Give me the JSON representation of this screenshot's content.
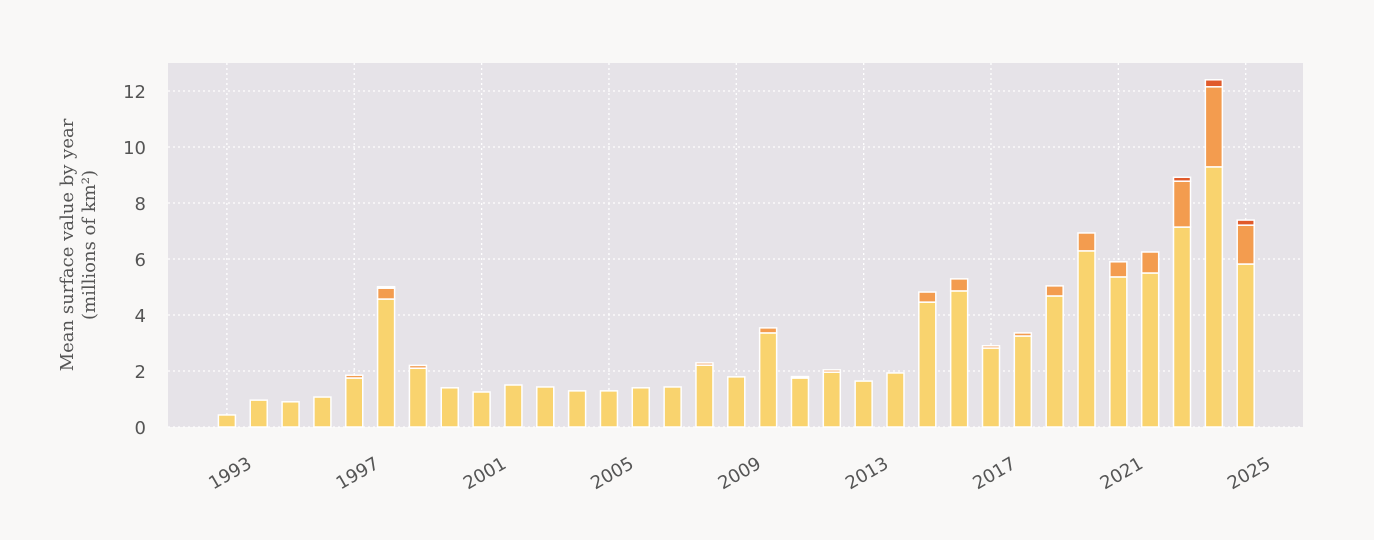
{
  "chart_data": {
    "type": "stacked-bar",
    "ylabel": [
      "Mean surface value by year",
      "(millions of km²)"
    ],
    "x": [
      1993,
      1994,
      1995,
      1996,
      1997,
      1998,
      1999,
      2000,
      2001,
      2002,
      2003,
      2004,
      2005,
      2006,
      2007,
      2008,
      2009,
      2010,
      2011,
      2012,
      2013,
      2014,
      2015,
      2016,
      2017,
      2018,
      2019,
      2020,
      2021,
      2022,
      2023,
      2024,
      2025
    ],
    "series": [
      {
        "color": "#f9d36e",
        "values": [
          0.43,
          0.96,
          0.9,
          1.07,
          1.75,
          4.57,
          2.1,
          1.4,
          1.25,
          1.5,
          1.43,
          1.29,
          1.29,
          1.4,
          1.43,
          2.21,
          1.79,
          3.36,
          1.75,
          1.96,
          1.64,
          1.93,
          4.46,
          4.86,
          2.82,
          3.25,
          4.68,
          6.29,
          5.36,
          5.5,
          7.14,
          9.29,
          5.82
        ]
      },
      {
        "color": "#f39c4f",
        "values": [
          0,
          0,
          0,
          0,
          0.1,
          0.39,
          0.1,
          0,
          0,
          0,
          0,
          0,
          0,
          0,
          0,
          0.08,
          0,
          0.18,
          0.05,
          0.08,
          0,
          0,
          0.36,
          0.43,
          0.08,
          0.11,
          0.36,
          0.64,
          0.54,
          0.75,
          1.64,
          2.86,
          1.39
        ]
      },
      {
        "color": "#e05a2b",
        "values": [
          0,
          0,
          0,
          0,
          0,
          0.05,
          0,
          0,
          0,
          0,
          0,
          0,
          0,
          0,
          0,
          0,
          0,
          0,
          0,
          0,
          0,
          0,
          0,
          0,
          0,
          0,
          0,
          0,
          0,
          0,
          0.14,
          0.25,
          0.18
        ]
      }
    ],
    "xlim": [
      1991.15,
      2026.8
    ],
    "xticks": [
      1993,
      1997,
      2001,
      2005,
      2009,
      2013,
      2017,
      2021,
      2025
    ],
    "ylim": [
      0,
      13
    ],
    "yticks": [
      0,
      2,
      4,
      6,
      8,
      10,
      12
    ],
    "grid": true,
    "plot_background": "#e6e3e8"
  }
}
